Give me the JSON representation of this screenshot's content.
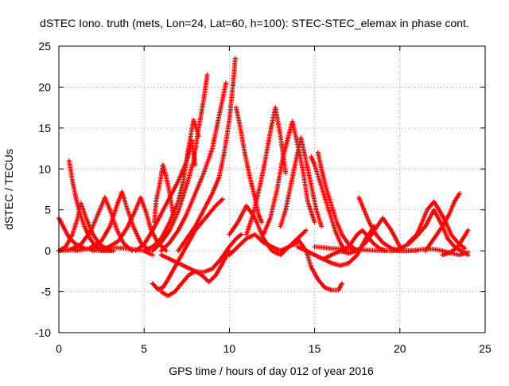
{
  "chart_data": {
    "type": "scatter",
    "title": "dSTEC Iono. truth (mets, Lon=24, Lat=60, h=100): STEC-STEC_elemax in phase cont.",
    "xlabel": "GPS time / hours of day 012 of year 2016",
    "ylabel": "dSTEC  / TECUs",
    "xlim": [
      0,
      25
    ],
    "ylim": [
      -10,
      25
    ],
    "xticks": [
      "0",
      "5",
      "10",
      "15",
      "20",
      "25"
    ],
    "yticks": [
      "-10",
      "-5",
      "0",
      "5",
      "10",
      "15",
      "20",
      "25"
    ],
    "grid": true,
    "legend": "none",
    "marker": "plus",
    "color": "#ff0000",
    "series": [
      {
        "x": [
          0.0,
          0.3,
          0.6,
          1.0,
          1.5,
          2.0,
          2.5,
          3.0
        ],
        "y": [
          4.0,
          2.8,
          1.6,
          0.8,
          0.3,
          0.1,
          0.0,
          0.0
        ]
      },
      {
        "x": [
          0.6,
          0.8,
          1.0,
          1.2,
          1.5,
          1.8,
          2.1,
          2.4,
          2.8,
          3.2
        ],
        "y": [
          11.0,
          8.5,
          6.5,
          4.8,
          3.0,
          1.6,
          0.7,
          0.2,
          0.0,
          0.0
        ]
      },
      {
        "x": [
          0.0,
          0.4,
          0.8,
          1.1,
          1.3,
          1.6,
          2.0,
          2.4,
          2.8,
          3.2
        ],
        "y": [
          0.0,
          0.5,
          2.0,
          4.0,
          5.8,
          4.0,
          2.0,
          0.8,
          0.2,
          0.0
        ]
      },
      {
        "x": [
          0.0,
          0.7,
          1.3,
          1.9,
          2.4,
          2.7,
          3.0,
          3.4,
          3.8,
          4.3
        ],
        "y": [
          0.0,
          0.2,
          0.8,
          2.5,
          5.0,
          6.5,
          5.0,
          2.6,
          0.9,
          0.0
        ]
      },
      {
        "x": [
          1.0,
          1.8,
          2.5,
          3.0,
          3.4,
          3.7,
          4.0,
          4.4,
          4.8,
          5.3
        ],
        "y": [
          0.0,
          0.3,
          1.2,
          3.0,
          5.5,
          7.2,
          5.2,
          2.8,
          1.0,
          0.0
        ]
      },
      {
        "x": [
          2.0,
          2.8,
          3.5,
          4.0,
          4.5,
          4.8,
          5.1,
          5.4,
          5.8,
          6.3
        ],
        "y": [
          0.0,
          0.3,
          1.2,
          2.8,
          5.0,
          6.5,
          4.8,
          2.6,
          1.0,
          0.0
        ]
      },
      {
        "x": [
          0.0,
          1.0,
          2.0,
          3.0,
          4.0,
          5.0,
          5.5
        ],
        "y": [
          0.0,
          0.1,
          0.3,
          0.4,
          0.3,
          0.0,
          -0.5
        ]
      },
      {
        "x": [
          5.6,
          5.7,
          5.9,
          6.1,
          6.3,
          6.5,
          6.7
        ],
        "y": [
          3.5,
          6.0,
          8.0,
          10.5,
          9.0,
          7.0,
          4.5
        ]
      },
      {
        "x": [
          4.5,
          5.0,
          5.5,
          6.0,
          6.5,
          7.0,
          7.5,
          7.8,
          8.0
        ],
        "y": [
          0.0,
          0.8,
          2.5,
          4.5,
          6.5,
          8.5,
          11.0,
          13.5,
          10.5
        ]
      },
      {
        "x": [
          5.0,
          5.5,
          6.0,
          6.5,
          7.0,
          7.3,
          7.6,
          7.9,
          8.2
        ],
        "y": [
          0.0,
          0.5,
          1.5,
          3.5,
          6.0,
          8.5,
          12.5,
          16.0,
          14.0
        ]
      },
      {
        "x": [
          5.5,
          6.0,
          6.5,
          7.0,
          7.5,
          7.9,
          8.2,
          8.5,
          8.7
        ],
        "y": [
          0.0,
          1.0,
          2.5,
          4.8,
          8.0,
          11.0,
          15.0,
          18.5,
          21.5
        ]
      },
      {
        "x": [
          6.0,
          6.5,
          7.0,
          7.5,
          8.0,
          8.5,
          9.0,
          9.3,
          9.6,
          9.8
        ],
        "y": [
          0.0,
          1.0,
          2.5,
          4.5,
          7.0,
          9.5,
          12.5,
          15.5,
          18.5,
          20.5
        ]
      },
      {
        "x": [
          7.0,
          7.5,
          8.0,
          8.5,
          9.0,
          9.4,
          9.7,
          10.0,
          10.2,
          10.35
        ],
        "y": [
          0.0,
          1.5,
          3.0,
          5.0,
          7.0,
          9.0,
          12.0,
          16.0,
          20.0,
          23.5
        ]
      },
      {
        "x": [
          5.5,
          5.8,
          6.1,
          6.4,
          6.8,
          7.2,
          7.6,
          8.0,
          8.4,
          8.8,
          9.2,
          9.6
        ],
        "y": [
          -4.0,
          -4.7,
          -4.5,
          -3.5,
          -2.0,
          -0.5,
          1.0,
          2.5,
          3.5,
          4.5,
          5.5,
          6.3
        ]
      },
      {
        "x": [
          6.0,
          6.4,
          6.8,
          7.2,
          7.6,
          8.0,
          8.4,
          8.8,
          9.2,
          9.6,
          10.0
        ],
        "y": [
          -5.0,
          -5.5,
          -5.0,
          -4.0,
          -3.0,
          -2.5,
          -3.0,
          -3.8,
          -3.0,
          -1.5,
          0.0
        ]
      },
      {
        "x": [
          6.0,
          6.5,
          7.0,
          7.5,
          8.0,
          8.5,
          9.0,
          9.5,
          10.0,
          10.4,
          10.7
        ],
        "y": [
          -0.5,
          -1.0,
          -1.5,
          -2.0,
          -2.5,
          -2.6,
          -2.2,
          -1.0,
          0.5,
          1.5,
          2.0
        ]
      },
      {
        "x": [
          10.4,
          10.6,
          10.9,
          11.2,
          11.5,
          11.7,
          11.9
        ],
        "y": [
          17.5,
          15.5,
          12.0,
          9.0,
          6.5,
          4.5,
          3.5
        ]
      },
      {
        "x": [
          11.0,
          11.4,
          11.8,
          12.1,
          12.4,
          12.7,
          13.0,
          13.3
        ],
        "y": [
          2.0,
          4.5,
          8.0,
          11.0,
          14.5,
          17.5,
          14.0,
          9.5
        ]
      },
      {
        "x": [
          12.0,
          12.4,
          12.8,
          13.1,
          13.4,
          13.7,
          14.0,
          14.3,
          14.6,
          15.0
        ],
        "y": [
          2.0,
          4.0,
          7.5,
          11.0,
          13.5,
          15.8,
          13.0,
          10.0,
          6.0,
          3.5
        ]
      },
      {
        "x": [
          13.0,
          13.3,
          13.6,
          13.9,
          14.2,
          14.5,
          14.8,
          15.1,
          15.4
        ],
        "y": [
          3.0,
          5.0,
          8.0,
          11.0,
          13.8,
          11.0,
          8.0,
          5.0,
          3.0
        ]
      },
      {
        "x": [
          14.8,
          15.0,
          15.3,
          15.6,
          15.9,
          16.2,
          16.5,
          16.8
        ],
        "y": [
          11.5,
          10.5,
          8.5,
          6.5,
          4.5,
          2.5,
          1.0,
          0.0
        ]
      },
      {
        "x": [
          15.2,
          15.4,
          15.7,
          16.0,
          16.3,
          16.6,
          17.0,
          17.5
        ],
        "y": [
          12.0,
          10.0,
          7.5,
          5.5,
          3.5,
          2.0,
          0.8,
          0.0
        ]
      },
      {
        "x": [
          10.0,
          10.5,
          11.0,
          11.5,
          12.0,
          12.5,
          13.0,
          13.5,
          14.0
        ],
        "y": [
          -0.5,
          0.5,
          1.5,
          2.0,
          1.0,
          0.5,
          0.0,
          0.5,
          1.0
        ]
      },
      {
        "x": [
          10.0,
          10.5,
          11.0,
          11.5,
          12.0,
          12.5,
          13.0,
          13.5,
          14.0,
          14.5
        ],
        "y": [
          2.0,
          3.5,
          5.5,
          4.0,
          1.5,
          0.0,
          -0.5,
          0.5,
          1.5,
          2.5
        ]
      },
      {
        "x": [
          13.0,
          13.5,
          14.0,
          14.5,
          14.8,
          15.2,
          15.6,
          16.0,
          16.4,
          16.6
        ],
        "y": [
          0.0,
          0.5,
          1.5,
          0.0,
          -2.0,
          -3.5,
          -4.5,
          -4.8,
          -4.8,
          -4.0
        ]
      },
      {
        "x": [
          14.0,
          14.5,
          15.0,
          15.5,
          16.0,
          16.5,
          17.0,
          17.5,
          18.0,
          18.5
        ],
        "y": [
          0.5,
          0.0,
          -0.5,
          -1.0,
          -1.5,
          -1.8,
          -1.5,
          -0.5,
          1.5,
          3.0
        ]
      },
      {
        "x": [
          14.5,
          15.0,
          15.5,
          16.0,
          16.5,
          17.0,
          17.5,
          18.0,
          18.5,
          19.0,
          19.5,
          20.0
        ],
        "y": [
          0.0,
          -0.5,
          -1.0,
          -0.5,
          0.0,
          -0.3,
          0.0,
          1.0,
          2.5,
          4.0,
          2.5,
          0.5
        ]
      },
      {
        "x": [
          17.6,
          17.9,
          18.2,
          18.6,
          19.0,
          19.5,
          20.0,
          20.5
        ],
        "y": [
          6.5,
          5.0,
          3.5,
          2.0,
          1.0,
          0.3,
          0.0,
          0.0
        ]
      },
      {
        "x": [
          16.5,
          17.0,
          17.5,
          17.8,
          18.1,
          18.4,
          18.8,
          19.2
        ],
        "y": [
          0.0,
          0.5,
          2.0,
          2.5,
          1.8,
          1.0,
          0.3,
          0.0
        ]
      },
      {
        "x": [
          15.0,
          16.0,
          17.0,
          18.0,
          19.0,
          20.0,
          21.0
        ],
        "y": [
          0.5,
          0.3,
          0.2,
          0.1,
          0.0,
          0.0,
          0.0
        ]
      },
      {
        "x": [
          19.5,
          20.0,
          20.5,
          21.0,
          21.5,
          22.0,
          22.5,
          22.8,
          23.2,
          23.6,
          24.0
        ],
        "y": [
          0.0,
          0.3,
          0.8,
          1.8,
          3.0,
          5.0,
          3.0,
          1.5,
          0.5,
          0.0,
          -0.5
        ]
      },
      {
        "x": [
          20.5,
          21.0,
          21.3,
          21.6,
          22.0,
          22.3,
          22.7,
          23.0,
          23.4,
          23.8
        ],
        "y": [
          1.0,
          2.0,
          3.5,
          5.0,
          6.0,
          5.0,
          3.5,
          2.0,
          1.0,
          0.3
        ]
      },
      {
        "x": [
          21.5,
          22.0,
          22.5,
          22.9,
          23.2,
          23.5
        ],
        "y": [
          0.0,
          1.5,
          3.0,
          4.5,
          6.0,
          7.0
        ]
      },
      {
        "x": [
          20.0,
          20.5,
          21.0,
          21.5,
          22.0,
          22.5,
          23.0,
          23.5,
          24.0
        ],
        "y": [
          0.0,
          0.0,
          0.1,
          0.2,
          0.2,
          0.0,
          -0.3,
          -0.5,
          -0.2
        ]
      },
      {
        "x": [
          22.5,
          22.8,
          23.1,
          23.4,
          23.7,
          24.0
        ],
        "y": [
          -0.5,
          -0.3,
          0.0,
          0.5,
          1.5,
          2.5
        ]
      }
    ]
  }
}
